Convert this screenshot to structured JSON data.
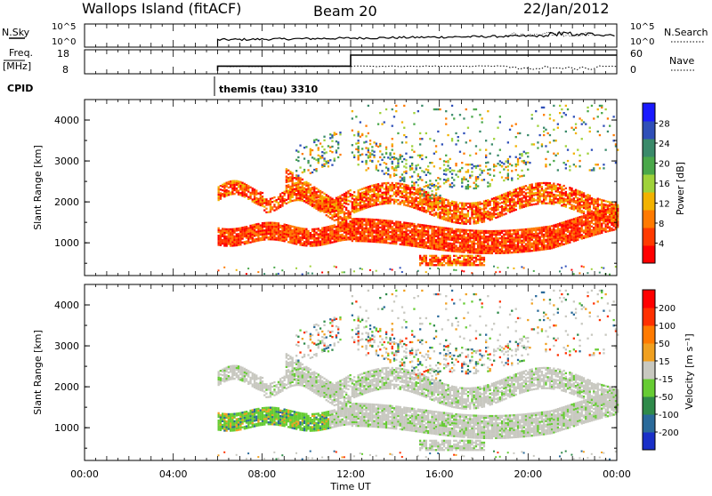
{
  "header": {
    "station": "Wallops Island (fitACF)",
    "beam": "Beam 20",
    "date": "22/Jan/2012"
  },
  "strip_panels": {
    "nsky_label": "N.Sky",
    "nsearch_label": "N.Search",
    "freq_label_line1": "Freq.",
    "freq_label_line2": "[MHz]",
    "nave_label": "Nave",
    "cpid_label": "CPID",
    "cpid_value": "themis (tau) 3310",
    "nsky_ticks": [
      "10^5",
      "10^0"
    ],
    "nsearch_ticks": [
      "10^5",
      "10^0"
    ],
    "freq_ticks": [
      "18",
      "8"
    ],
    "nave_ticks": [
      "60",
      "0"
    ]
  },
  "chart_data": [
    {
      "type": "heatmap",
      "name": "power",
      "ylabel": "Slant Range [km]",
      "colorbar_label": "Power [dB]",
      "ylim": [
        200,
        4500
      ],
      "yticks": [
        "1000",
        "2000",
        "3000",
        "4000"
      ],
      "colorbar_ticks": [
        "4",
        "8",
        "12",
        "16",
        "20",
        "24",
        "28"
      ],
      "colors": [
        "#1a1aff",
        "#2f4fb8",
        "#3a8a6a",
        "#4aa84a",
        "#9fd23a",
        "#f2b200",
        "#ff7a00",
        "#ff3a00",
        "#ff0000"
      ]
    },
    {
      "type": "heatmap",
      "name": "velocity",
      "ylabel": "Slant Range [km]",
      "colorbar_label": "Velocity [m s⁻¹]",
      "ylim": [
        200,
        4500
      ],
      "yticks": [
        "1000",
        "2000",
        "3000",
        "4000"
      ],
      "colorbar_ticks": [
        "200",
        "100",
        "50",
        "15",
        "-15",
        "-50",
        "-100",
        "-200"
      ],
      "colors": [
        "#1a30c8",
        "#2a6a9a",
        "#2f8a4a",
        "#66cc33",
        "#c8c8c0",
        "#f0a020",
        "#ff7a00",
        "#ff3000",
        "#ff0000"
      ]
    }
  ],
  "time_axis": {
    "xlabel": "Time UT",
    "ticks": [
      "00:00",
      "04:00",
      "08:00",
      "12:00",
      "16:00",
      "20:00",
      "00:00"
    ],
    "range_hours": [
      0,
      24
    ]
  },
  "frequency_trace": [
    {
      "t": 6.0,
      "f": 8.0
    },
    {
      "t": 6.0,
      "f": 10.5
    },
    {
      "t": 12.0,
      "f": 10.5
    },
    {
      "t": 12.0,
      "f": 16.2
    },
    {
      "t": 24.0,
      "f": 16.2
    }
  ]
}
